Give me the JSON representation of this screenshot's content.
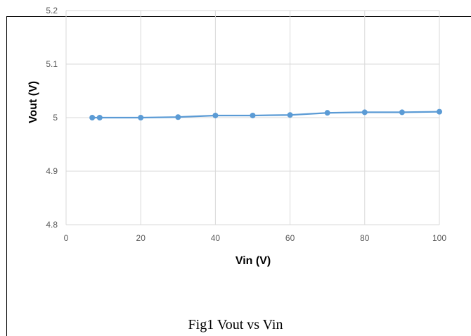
{
  "chart_data": {
    "type": "line",
    "title": "",
    "xlabel": "Vin (V)",
    "ylabel": "Vout (V)",
    "xlim": [
      0,
      100
    ],
    "ylim": [
      4.8,
      5.2
    ],
    "xticks": [
      "0",
      "20",
      "40",
      "60",
      "80",
      "100"
    ],
    "yticks": [
      "4.8",
      "4.9",
      "5",
      "5.1",
      "5.2"
    ],
    "grid": true,
    "color": "#5b9bd5",
    "series": [
      {
        "x": [
          7,
          9,
          20,
          30,
          40,
          50,
          60,
          70,
          80,
          90,
          100
        ],
        "y": [
          5.0,
          5.0,
          5.0,
          5.001,
          5.004,
          5.004,
          5.005,
          5.009,
          5.01,
          5.01,
          5.011
        ]
      }
    ]
  },
  "caption": "Fig1 Vout vs Vin"
}
